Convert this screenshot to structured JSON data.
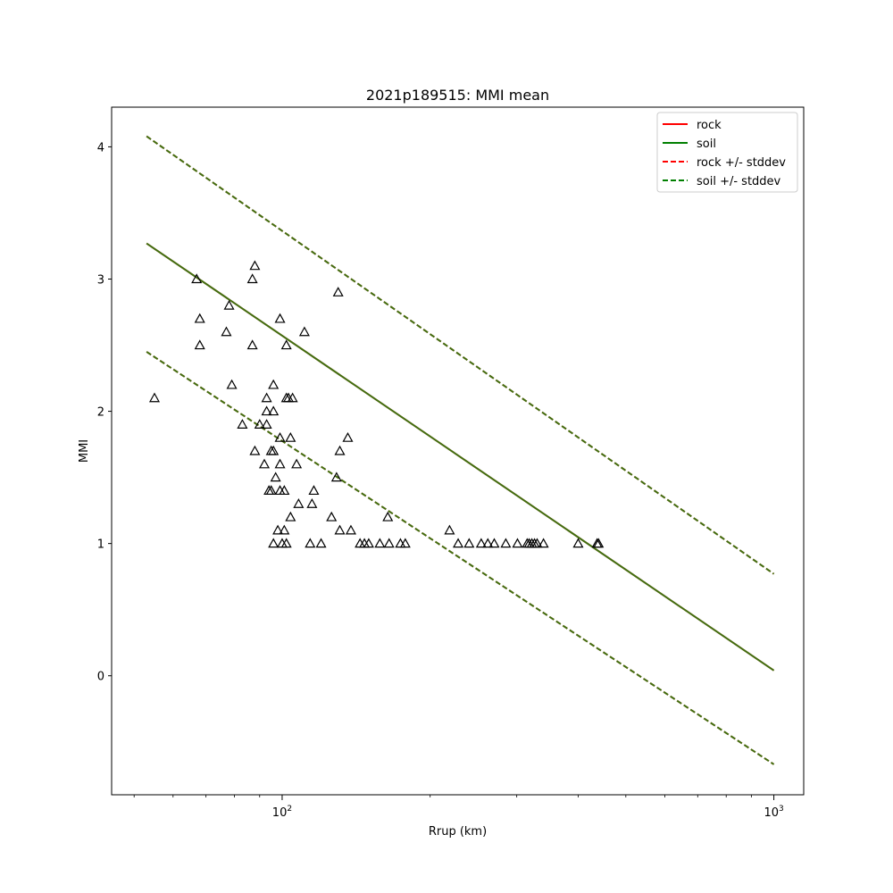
{
  "chart_data": {
    "type": "scatter",
    "title": "2021p189515: MMI mean",
    "xlabel": "Rrup (km)",
    "ylabel": "MMI",
    "xscale": "log",
    "xlim": [
      45,
      1150
    ],
    "ylim": [
      -0.9,
      4.3
    ],
    "x_ticks": [
      {
        "value": 100,
        "base": "10",
        "exp": "2"
      },
      {
        "value": 1000,
        "base": "10",
        "exp": "3"
      }
    ],
    "y_ticks": [
      0,
      1,
      2,
      3,
      4
    ],
    "grid": false,
    "legend_position": "top-right",
    "colors": {
      "rock": "#ff0000",
      "soil": "#007f00",
      "overlap": "#3f7f00"
    },
    "series": [
      {
        "name": "rock",
        "style": "solid",
        "color": "#ff0000",
        "x": [
          53,
          1000
        ],
        "y": [
          3.27,
          0.04
        ]
      },
      {
        "name": "soil",
        "style": "solid",
        "color": "#007f00",
        "x": [
          53,
          1000
        ],
        "y": [
          3.27,
          0.04
        ]
      },
      {
        "name": "rock +/- stddev",
        "style": "dashed",
        "color": "#ff0000",
        "x": [
          53,
          1000
        ],
        "upper": [
          4.08,
          0.77
        ],
        "lower": [
          2.45,
          -0.67
        ]
      },
      {
        "name": "soil +/- stddev",
        "style": "dashed",
        "color": "#007f00",
        "x": [
          53,
          1000
        ],
        "upper": [
          4.08,
          0.77
        ],
        "lower": [
          2.45,
          -0.67
        ]
      }
    ],
    "observations": {
      "marker": "triangle",
      "points": [
        [
          55,
          2.1
        ],
        [
          67,
          3.0
        ],
        [
          68,
          2.7
        ],
        [
          68,
          2.5
        ],
        [
          77,
          2.6
        ],
        [
          78,
          2.8
        ],
        [
          79,
          2.2
        ],
        [
          83,
          1.9
        ],
        [
          87,
          3.0
        ],
        [
          87,
          2.5
        ],
        [
          88,
          3.1
        ],
        [
          88,
          1.7
        ],
        [
          90,
          1.9
        ],
        [
          92,
          1.6
        ],
        [
          93,
          2.1
        ],
        [
          93,
          2.0
        ],
        [
          93,
          1.9
        ],
        [
          94,
          1.4
        ],
        [
          95,
          1.4
        ],
        [
          95,
          1.7
        ],
        [
          96,
          2.2
        ],
        [
          96,
          1.7
        ],
        [
          96,
          2.0
        ],
        [
          97,
          1.5
        ],
        [
          96,
          1.0
        ],
        [
          98,
          1.1
        ],
        [
          99,
          1.6
        ],
        [
          99,
          2.7
        ],
        [
          99,
          1.8
        ],
        [
          99,
          1.4
        ],
        [
          100,
          1.0
        ],
        [
          101,
          1.4
        ],
        [
          101,
          1.1
        ],
        [
          102,
          2.1
        ],
        [
          102,
          1.0
        ],
        [
          102,
          2.5
        ],
        [
          103,
          2.1
        ],
        [
          104,
          1.8
        ],
        [
          104,
          1.2
        ],
        [
          105,
          2.1
        ],
        [
          107,
          1.6
        ],
        [
          108,
          1.3
        ],
        [
          111,
          2.6
        ],
        [
          114,
          1.0
        ],
        [
          115,
          1.3
        ],
        [
          116,
          1.4
        ],
        [
          120,
          1.0
        ],
        [
          126,
          1.2
        ],
        [
          129,
          1.5
        ],
        [
          130,
          2.9
        ],
        [
          131,
          1.7
        ],
        [
          131,
          1.1
        ],
        [
          136,
          1.8
        ],
        [
          138,
          1.1
        ],
        [
          144,
          1.0
        ],
        [
          147,
          1.0
        ],
        [
          150,
          1.0
        ],
        [
          158,
          1.0
        ],
        [
          164,
          1.2
        ],
        [
          165,
          1.0
        ],
        [
          174,
          1.0
        ],
        [
          178,
          1.0
        ],
        [
          219,
          1.1
        ],
        [
          228,
          1.0
        ],
        [
          240,
          1.0
        ],
        [
          254,
          1.0
        ],
        [
          262,
          1.0
        ],
        [
          270,
          1.0
        ],
        [
          285,
          1.0
        ],
        [
          301,
          1.0
        ],
        [
          315,
          1.0
        ],
        [
          318,
          1.0
        ],
        [
          322,
          1.0
        ],
        [
          326,
          1.0
        ],
        [
          330,
          1.0
        ],
        [
          340,
          1.0
        ],
        [
          400,
          1.0
        ],
        [
          437,
          1.0
        ],
        [
          440,
          1.0
        ]
      ]
    }
  }
}
